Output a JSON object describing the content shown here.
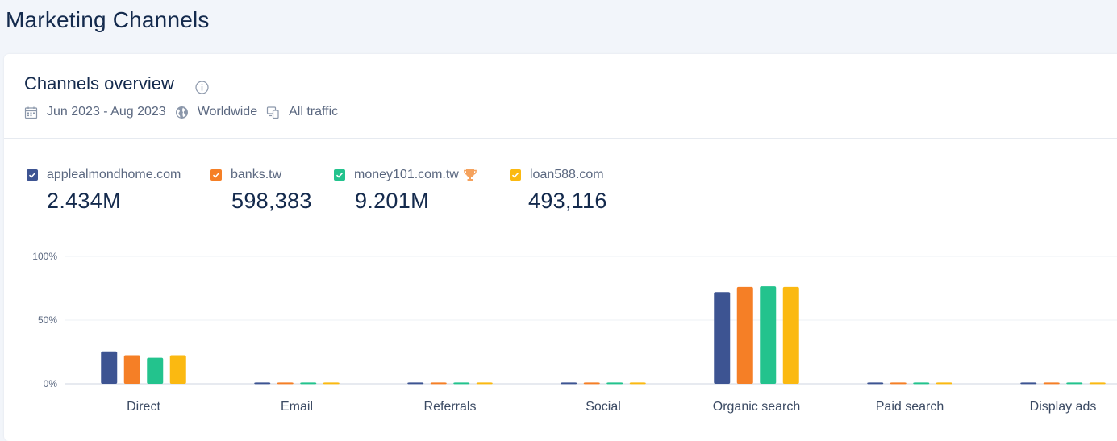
{
  "page": {
    "title": "Marketing Channels"
  },
  "card": {
    "title": "Channels overview",
    "date_range": "Jun 2023 - Aug 2023",
    "region": "Worldwide",
    "traffic": "All traffic"
  },
  "legend": [
    {
      "domain": "applealmondhome.com",
      "value": "2.434M",
      "color": "#3d5492",
      "trophy": false
    },
    {
      "domain": "banks.tw",
      "value": "598,383",
      "color": "#f57f26",
      "trophy": false
    },
    {
      "domain": "money101.com.tw",
      "value": "9.201M",
      "color": "#23c38d",
      "trophy": true
    },
    {
      "domain": "loan588.com",
      "value": "493,116",
      "color": "#fbb911",
      "trophy": false
    }
  ],
  "chart_data": {
    "type": "bar",
    "categories": [
      "Direct",
      "Email",
      "Referrals",
      "Social",
      "Organic search",
      "Paid search",
      "Display ads"
    ],
    "series": [
      {
        "name": "applealmondhome.com",
        "color": "#3d5492",
        "values": [
          25.5,
          1,
          1,
          1,
          72,
          1,
          1
        ]
      },
      {
        "name": "banks.tw",
        "color": "#f57f26",
        "values": [
          22.5,
          1,
          1,
          1,
          76,
          1,
          1
        ]
      },
      {
        "name": "money101.com.tw",
        "color": "#23c38d",
        "values": [
          20.5,
          1,
          1,
          1,
          76.5,
          1,
          1
        ]
      },
      {
        "name": "loan588.com",
        "color": "#fbb911",
        "values": [
          22.5,
          1,
          1,
          1,
          76,
          1,
          1
        ]
      }
    ],
    "y_ticks": [
      "0%",
      "50%",
      "100%"
    ],
    "ylim": [
      0,
      100
    ],
    "grid": true,
    "legend_position": "top"
  }
}
